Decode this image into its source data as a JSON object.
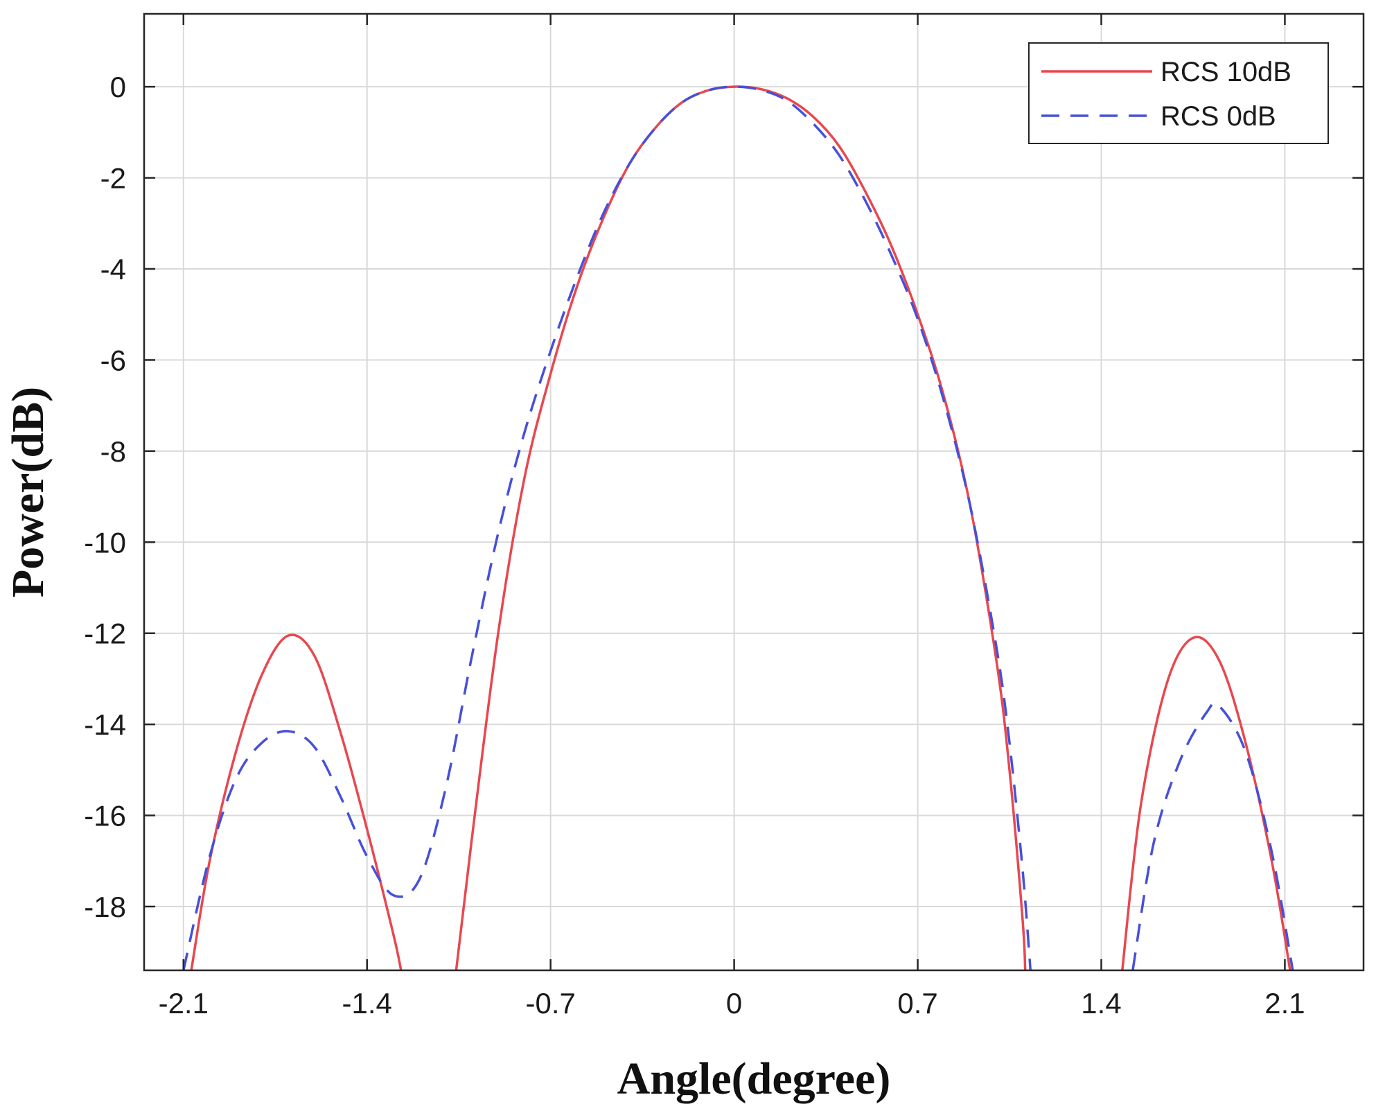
{
  "chart_data": {
    "type": "line",
    "xlabel": "Angle(degree)",
    "ylabel": "Power(dB)",
    "xlim": [
      -2.25,
      2.4
    ],
    "ylim": [
      -19.4,
      1.6
    ],
    "xticks": [
      -2.1,
      -1.4,
      -0.7,
      0,
      0.7,
      1.4,
      2.1
    ],
    "xtick_labels": [
      "-2.1",
      "-1.4",
      "-0.7",
      "0",
      "0.7",
      "1.4",
      "2.1"
    ],
    "yticks": [
      0,
      -2,
      -4,
      -6,
      -8,
      -10,
      -12,
      -14,
      -16,
      -18
    ],
    "ytick_labels": [
      "0",
      "-2",
      "-4",
      "-6",
      "-8",
      "-10",
      "-12",
      "-14",
      "-16",
      "-18"
    ],
    "grid": true,
    "legend_position": "top-right",
    "series": [
      {
        "name": "RCS 10dB",
        "color": "#e8474f",
        "style": "solid",
        "segments": [
          [
            [
              -2.07,
              -19.4
            ],
            [
              -2.0,
              -17.0
            ],
            [
              -1.9,
              -14.6
            ],
            [
              -1.8,
              -12.9
            ],
            [
              -1.7,
              -12.05
            ],
            [
              -1.6,
              -12.5
            ],
            [
              -1.5,
              -14.2
            ],
            [
              -1.4,
              -16.3
            ],
            [
              -1.3,
              -18.6
            ],
            [
              -1.27,
              -19.4
            ]
          ],
          [
            [
              -1.06,
              -19.4
            ],
            [
              -1.0,
              -16.5
            ],
            [
              -0.9,
              -12.0
            ],
            [
              -0.8,
              -8.6
            ],
            [
              -0.7,
              -6.3
            ],
            [
              -0.6,
              -4.4
            ],
            [
              -0.5,
              -2.9
            ],
            [
              -0.4,
              -1.7
            ],
            [
              -0.3,
              -0.9
            ],
            [
              -0.2,
              -0.35
            ],
            [
              -0.1,
              -0.08
            ],
            [
              0,
              0
            ],
            [
              0.1,
              -0.05
            ],
            [
              0.2,
              -0.25
            ],
            [
              0.3,
              -0.65
            ],
            [
              0.4,
              -1.3
            ],
            [
              0.5,
              -2.3
            ],
            [
              0.6,
              -3.5
            ],
            [
              0.7,
              -5.0
            ],
            [
              0.8,
              -6.8
            ],
            [
              0.9,
              -9.2
            ],
            [
              1.0,
              -12.6
            ],
            [
              1.05,
              -15.0
            ],
            [
              1.1,
              -18.3
            ],
            [
              1.11,
              -19.4
            ]
          ],
          [
            [
              1.48,
              -19.4
            ],
            [
              1.55,
              -15.8
            ],
            [
              1.65,
              -13.1
            ],
            [
              1.75,
              -12.1
            ],
            [
              1.85,
              -12.6
            ],
            [
              1.95,
              -14.4
            ],
            [
              2.05,
              -17.0
            ],
            [
              2.12,
              -19.4
            ]
          ]
        ]
      },
      {
        "name": "RCS 0dB",
        "color": "#4650d8",
        "style": "dashed",
        "segments": [
          [
            [
              -2.1,
              -19.4
            ],
            [
              -2.0,
              -16.9
            ],
            [
              -1.9,
              -15.2
            ],
            [
              -1.8,
              -14.4
            ],
            [
              -1.7,
              -14.15
            ],
            [
              -1.6,
              -14.5
            ],
            [
              -1.5,
              -15.6
            ],
            [
              -1.4,
              -16.9
            ],
            [
              -1.3,
              -17.75
            ],
            [
              -1.2,
              -17.4
            ],
            [
              -1.1,
              -15.4
            ],
            [
              -1.0,
              -12.5
            ],
            [
              -0.9,
              -9.8
            ],
            [
              -0.8,
              -7.6
            ],
            [
              -0.7,
              -5.8
            ],
            [
              -0.6,
              -4.2
            ],
            [
              -0.5,
              -2.8
            ],
            [
              -0.4,
              -1.7
            ],
            [
              -0.3,
              -0.9
            ],
            [
              -0.2,
              -0.35
            ],
            [
              -0.1,
              -0.08
            ],
            [
              0,
              0
            ],
            [
              0.1,
              -0.07
            ],
            [
              0.2,
              -0.3
            ],
            [
              0.3,
              -0.8
            ],
            [
              0.4,
              -1.5
            ],
            [
              0.5,
              -2.5
            ],
            [
              0.6,
              -3.7
            ],
            [
              0.7,
              -5.1
            ],
            [
              0.8,
              -6.9
            ],
            [
              0.9,
              -9.2
            ],
            [
              1.0,
              -12.3
            ],
            [
              1.05,
              -14.4
            ],
            [
              1.1,
              -17.2
            ],
            [
              1.13,
              -19.4
            ]
          ],
          [
            [
              1.52,
              -19.4
            ],
            [
              1.6,
              -16.6
            ],
            [
              1.7,
              -14.8
            ],
            [
              1.8,
              -13.75
            ],
            [
              1.85,
              -13.6
            ],
            [
              1.95,
              -14.6
            ],
            [
              2.05,
              -16.8
            ],
            [
              2.13,
              -19.4
            ]
          ]
        ]
      }
    ]
  }
}
